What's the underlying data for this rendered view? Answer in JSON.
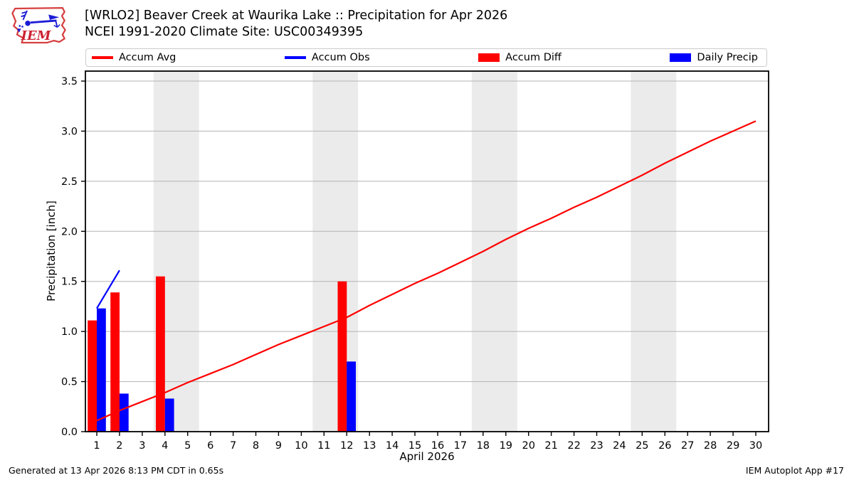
{
  "header": {
    "title": "[WRLO2] Beaver Creek at Waurika Lake :: Precipitation for Apr 2026",
    "subtitle": "NCEI 1991-2020 Climate Site: USC00349395",
    "logo_text": "IEM"
  },
  "legend": {
    "items": [
      {
        "label": "Accum Avg",
        "type": "line",
        "color": "#ff0000"
      },
      {
        "label": "Accum Obs",
        "type": "line",
        "color": "#0000ff"
      },
      {
        "label": "Accum Diff",
        "type": "rect",
        "color": "#ff0000"
      },
      {
        "label": "Daily Precip",
        "type": "rect",
        "color": "#0000ff"
      }
    ]
  },
  "footer": {
    "left": "Generated at 13 Apr 2026 8:13 PM CDT in 0.65s",
    "right": "IEM Autoplot App #17"
  },
  "chart_data": {
    "type": "line+bar",
    "title": "[WRLO2] Beaver Creek at Waurika Lake :: Precipitation for Apr 2026",
    "subtitle": "NCEI 1991-2020 Climate Site: USC00349395",
    "xlabel": "April 2026",
    "ylabel": "Precipitation [inch]",
    "xlim": [
      0.5,
      30.56
    ],
    "ylim": [
      0,
      3.6
    ],
    "x_ticks": [
      1,
      2,
      3,
      4,
      5,
      6,
      7,
      8,
      9,
      10,
      11,
      12,
      13,
      14,
      15,
      16,
      17,
      18,
      19,
      20,
      21,
      22,
      23,
      24,
      25,
      26,
      27,
      28,
      29,
      30
    ],
    "y_ticks": [
      0.0,
      0.5,
      1.0,
      1.5,
      2.0,
      2.5,
      3.0,
      3.5
    ],
    "grid": true,
    "grid_color": "#b3b3b3",
    "band_color": "#ebebeb",
    "weekend_bands": [
      [
        3.5,
        5.5
      ],
      [
        10.5,
        12.5
      ],
      [
        17.5,
        19.5
      ],
      [
        24.5,
        26.5
      ]
    ],
    "legend_position": "top, expanded, 4 columns",
    "series": [
      {
        "name": "Accum Avg",
        "type": "line",
        "color": "#ff0000",
        "x": [
          1,
          2,
          3,
          4,
          5,
          6,
          7,
          8,
          9,
          10,
          11,
          12,
          13,
          14,
          15,
          16,
          17,
          18,
          19,
          20,
          21,
          22,
          23,
          24,
          25,
          26,
          27,
          28,
          29,
          30
        ],
        "y": [
          0.11,
          0.21,
          0.3,
          0.39,
          0.49,
          0.58,
          0.67,
          0.77,
          0.87,
          0.96,
          1.05,
          1.14,
          1.26,
          1.37,
          1.48,
          1.58,
          1.69,
          1.8,
          1.92,
          2.03,
          2.13,
          2.24,
          2.34,
          2.45,
          2.56,
          2.68,
          2.79,
          2.9,
          3.0,
          3.1
        ]
      },
      {
        "name": "Accum Obs",
        "type": "line",
        "color": "#0000ff",
        "x": [
          1,
          2
        ],
        "y": [
          1.23,
          1.61
        ]
      },
      {
        "name": "Accum Diff",
        "type": "bar",
        "color": "#ff0000",
        "offset": -0.4,
        "width": 0.4,
        "x": [
          1,
          2,
          4,
          12
        ],
        "y": [
          1.11,
          1.39,
          1.55,
          1.5
        ]
      },
      {
        "name": "Daily Precip",
        "type": "bar",
        "color": "#0000ff",
        "offset": 0,
        "width": 0.4,
        "x": [
          1,
          2,
          4,
          12
        ],
        "y": [
          1.23,
          0.38,
          0.33,
          0.7
        ]
      }
    ]
  }
}
